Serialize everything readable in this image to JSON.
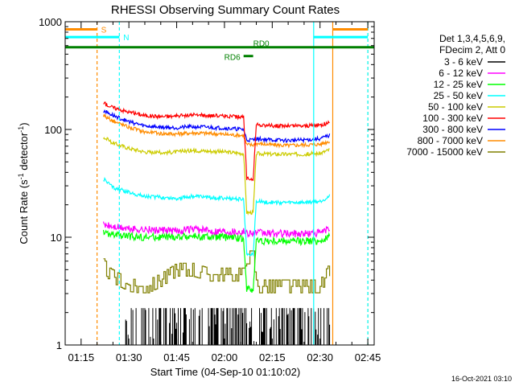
{
  "chart_data": {
    "type": "line",
    "title": "RHESSI Observing Summary Count Rates",
    "xlabel": "Start Time (04-Sep-10 01:10:02)",
    "ylabel_main": "Count Rate (s",
    "ylabel_sup1": "-1",
    "ylabel_mid": " detector",
    "ylabel_sup2": "-1",
    "ylabel_end": ")",
    "footer": "16-Oct-2021 03:10",
    "y_scale": "log",
    "xlim": [
      "01:10",
      "02:47"
    ],
    "ylim": [
      1,
      1000
    ],
    "x_ticks": [
      "01:15",
      "01:30",
      "01:45",
      "02:00",
      "02:15",
      "02:30",
      "02:45"
    ],
    "y_ticks": [
      {
        "value": 1,
        "label": "1"
      },
      {
        "value": 10,
        "label": "10"
      },
      {
        "value": 100,
        "label": "100"
      },
      {
        "value": 1000,
        "label": "1000"
      }
    ],
    "legend_header": [
      "Det 1,3,4,5,6,9,",
      "FDecim 2, Att 0"
    ],
    "series": [
      {
        "name": "3 - 6 keV",
        "color": "#000000"
      },
      {
        "name": "6 - 12 keV",
        "color": "#ff00ff"
      },
      {
        "name": "12 - 25 keV",
        "color": "#00ff00"
      },
      {
        "name": "25 - 50 keV",
        "color": "#00ffff"
      },
      {
        "name": "50 - 100 keV",
        "color": "#cccc00"
      },
      {
        "name": "100 - 300 keV",
        "color": "#ff0000"
      },
      {
        "name": "300 - 800 keV",
        "color": "#0000ff"
      },
      {
        "name": "800 - 7000 keV",
        "color": "#ff8c00"
      },
      {
        "name": "7000 - 15000 keV",
        "color": "#808000"
      }
    ],
    "series_points": {
      "100 - 300 keV": [
        [
          "01:22",
          175
        ],
        [
          "01:25",
          160
        ],
        [
          "01:30",
          145
        ],
        [
          "01:35",
          135
        ],
        [
          "01:40",
          132
        ],
        [
          "01:45",
          133
        ],
        [
          "01:50",
          136
        ],
        [
          "01:55",
          135
        ],
        [
          "02:00",
          133
        ],
        [
          "02:06",
          130
        ],
        [
          "02:07",
          35
        ],
        [
          "02:09",
          35
        ],
        [
          "02:10",
          110
        ],
        [
          "02:15",
          108
        ],
        [
          "02:20",
          108
        ],
        [
          "02:25",
          108
        ],
        [
          "02:30",
          110
        ],
        [
          "02:33",
          115
        ]
      ],
      "300 - 800 keV": [
        [
          "01:22",
          150
        ],
        [
          "01:25",
          135
        ],
        [
          "01:30",
          118
        ],
        [
          "01:35",
          108
        ],
        [
          "01:40",
          105
        ],
        [
          "01:45",
          104
        ],
        [
          "01:50",
          106
        ],
        [
          "01:55",
          105
        ],
        [
          "02:00",
          103
        ],
        [
          "02:06",
          100
        ],
        [
          "02:07",
          80
        ],
        [
          "02:09",
          80
        ],
        [
          "02:10",
          82
        ],
        [
          "02:15",
          80
        ],
        [
          "02:20",
          79
        ],
        [
          "02:25",
          80
        ],
        [
          "02:30",
          82
        ],
        [
          "02:33",
          88
        ]
      ],
      "800 - 7000 keV": [
        [
          "01:22",
          135
        ],
        [
          "01:25",
          120
        ],
        [
          "01:30",
          105
        ],
        [
          "01:35",
          95
        ],
        [
          "01:40",
          92
        ],
        [
          "01:45",
          91
        ],
        [
          "01:50",
          93
        ],
        [
          "01:55",
          92
        ],
        [
          "02:00",
          90
        ],
        [
          "02:06",
          88
        ],
        [
          "02:07",
          72
        ],
        [
          "02:09",
          72
        ],
        [
          "02:10",
          74
        ],
        [
          "02:15",
          72
        ],
        [
          "02:20",
          71
        ],
        [
          "02:25",
          72
        ],
        [
          "02:30",
          73
        ],
        [
          "02:33",
          78
        ]
      ],
      "50 - 100 keV": [
        [
          "01:22",
          85
        ],
        [
          "01:25",
          75
        ],
        [
          "01:30",
          67
        ],
        [
          "01:35",
          62
        ],
        [
          "01:40",
          61
        ],
        [
          "01:45",
          62
        ],
        [
          "01:50",
          64
        ],
        [
          "01:55",
          63
        ],
        [
          "02:00",
          62
        ],
        [
          "02:06",
          60
        ],
        [
          "02:07",
          17
        ],
        [
          "02:09",
          17
        ],
        [
          "02:10",
          60
        ],
        [
          "02:15",
          59
        ],
        [
          "02:20",
          59
        ],
        [
          "02:25",
          59
        ],
        [
          "02:30",
          60
        ],
        [
          "02:33",
          65
        ]
      ],
      "25 - 50 keV": [
        [
          "01:22",
          35
        ],
        [
          "01:25",
          29
        ],
        [
          "01:30",
          26
        ],
        [
          "01:35",
          24
        ],
        [
          "01:40",
          23.5
        ],
        [
          "01:45",
          23
        ],
        [
          "01:50",
          24
        ],
        [
          "01:55",
          23.5
        ],
        [
          "02:00",
          23
        ],
        [
          "02:06",
          22.5
        ],
        [
          "02:07",
          7
        ],
        [
          "02:09",
          7
        ],
        [
          "02:10",
          21.5
        ],
        [
          "02:15",
          21
        ],
        [
          "02:20",
          21
        ],
        [
          "02:25",
          21
        ],
        [
          "02:30",
          21.5
        ],
        [
          "02:33",
          24
        ]
      ],
      "6 - 12 keV": [
        [
          "01:22",
          13
        ],
        [
          "01:25",
          12.5
        ],
        [
          "01:30",
          12
        ],
        [
          "01:35",
          11.8
        ],
        [
          "01:40",
          11.5
        ],
        [
          "01:45",
          11.5
        ],
        [
          "01:50",
          11.8
        ],
        [
          "01:55",
          11.5
        ],
        [
          "02:00",
          11.5
        ],
        [
          "02:06",
          11.2
        ],
        [
          "02:07",
          11
        ],
        [
          "02:09",
          11
        ],
        [
          "02:10",
          11
        ],
        [
          "02:15",
          10.8
        ],
        [
          "02:20",
          10.8
        ],
        [
          "02:25",
          10.8
        ],
        [
          "02:30",
          11
        ],
        [
          "02:33",
          12
        ]
      ],
      "12 - 25 keV": [
        [
          "01:22",
          11
        ],
        [
          "01:25",
          10.5
        ],
        [
          "01:30",
          10.2
        ],
        [
          "01:35",
          10
        ],
        [
          "01:40",
          10
        ],
        [
          "01:45",
          10
        ],
        [
          "01:50",
          10.2
        ],
        [
          "01:55",
          10
        ],
        [
          "02:00",
          10
        ],
        [
          "02:06",
          9.8
        ],
        [
          "02:07",
          3.3
        ],
        [
          "02:09",
          3.3
        ],
        [
          "02:10",
          9.3
        ],
        [
          "02:15",
          9.2
        ],
        [
          "02:20",
          9.2
        ],
        [
          "02:25",
          9.2
        ],
        [
          "02:30",
          9.3
        ],
        [
          "02:33",
          10
        ]
      ],
      "7000 - 15000 keV": [
        [
          "01:22",
          5.5
        ],
        [
          "01:24",
          4.5
        ],
        [
          "01:27",
          4
        ],
        [
          "01:30",
          3.6
        ],
        [
          "01:33",
          3.5
        ],
        [
          "01:36",
          3.5
        ],
        [
          "01:40",
          4
        ],
        [
          "01:45",
          5
        ],
        [
          "01:50",
          5
        ],
        [
          "01:55",
          4.5
        ],
        [
          "02:00",
          4.5
        ],
        [
          "02:06",
          4.5
        ],
        [
          "02:07",
          6.5
        ],
        [
          "02:09",
          6.5
        ],
        [
          "02:10",
          3.5
        ],
        [
          "02:15",
          3.5
        ],
        [
          "02:20",
          3.5
        ],
        [
          "02:25",
          3.5
        ],
        [
          "02:30",
          3.5
        ],
        [
          "02:33",
          5
        ]
      ],
      "3 - 6 keV": [
        [
          "01:29",
          1
        ],
        [
          "01:35",
          1.3
        ],
        [
          "01:40",
          1.5
        ],
        [
          "01:45",
          1.6
        ],
        [
          "01:50",
          1.6
        ],
        [
          "01:55",
          1.8
        ],
        [
          "02:00",
          1.8
        ],
        [
          "02:05",
          1.5
        ],
        [
          "02:08",
          1.2
        ],
        [
          "02:12",
          1.4
        ],
        [
          "02:17",
          1.5
        ],
        [
          "02:22",
          1.6
        ],
        [
          "02:27",
          1.5
        ],
        [
          "02:30",
          1.4
        ],
        [
          "02:33",
          1.8
        ]
      ]
    },
    "attenuator_markers": {
      "S": {
        "label": "S",
        "color": "#ff8c00",
        "start": "01:10",
        "end": "01:20",
        "y_value": 850
      },
      "N": {
        "label": "N",
        "color": "#00ffff",
        "start": "01:10",
        "end": "01:27",
        "y_value": 720
      },
      "S_right": {
        "color": "#ff8c00",
        "start": "02:34",
        "end": "02:45",
        "y_value": 850
      },
      "N_right": {
        "color": "#00ffff",
        "start": "02:28",
        "end": "02:45",
        "y_value": 720
      },
      "RD0": {
        "label": "RD0",
        "color": "#008000",
        "start": "01:10",
        "end": "02:47",
        "y_value": 580
      },
      "RD6": {
        "label": "RD6",
        "color": "#008000",
        "start": "02:06",
        "end": "02:09",
        "y_value": 480
      }
    },
    "vlines": [
      {
        "time": "01:20",
        "color": "#ff8c00",
        "style": "dashed"
      },
      {
        "time": "01:27",
        "color": "#00ffff",
        "style": "dashed"
      },
      {
        "time": "02:28",
        "color": "#00ffff",
        "style": "solid"
      },
      {
        "time": "02:34",
        "color": "#ff8c00",
        "style": "solid"
      },
      {
        "time": "02:45",
        "color": "#ff8c00",
        "style": "dashed"
      },
      {
        "time": "02:45",
        "color": "#00ffff",
        "style": "dashed"
      }
    ],
    "data_gaps": [
      [
        "01:10",
        "01:20"
      ],
      [
        "02:34",
        "02:47"
      ]
    ]
  }
}
